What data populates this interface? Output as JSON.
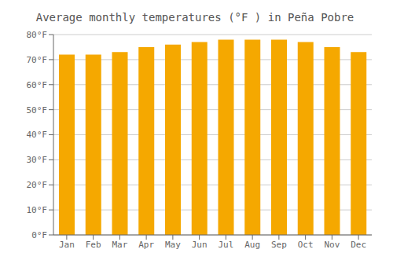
{
  "chart_data": {
    "type": "bar",
    "title": "Average monthly temperatures (°F ) in Peña Pobre",
    "categories": [
      "Jan",
      "Feb",
      "Mar",
      "Apr",
      "May",
      "Jun",
      "Jul",
      "Aug",
      "Sep",
      "Oct",
      "Nov",
      "Dec"
    ],
    "values": [
      72,
      72,
      73,
      75,
      76,
      77,
      78,
      78,
      78,
      77,
      75,
      73
    ],
    "color": "#F5A800",
    "ylim": [
      0,
      80
    ],
    "yticks": [
      {
        "value": 0,
        "label": "0°F"
      },
      {
        "value": 10,
        "label": "10°F"
      },
      {
        "value": 20,
        "label": "20°F"
      },
      {
        "value": 30,
        "label": "30°F"
      },
      {
        "value": 40,
        "label": "40°F"
      },
      {
        "value": 50,
        "label": "50°F"
      },
      {
        "value": 60,
        "label": "60°F"
      },
      {
        "value": 70,
        "label": "70°F"
      },
      {
        "value": 80,
        "label": "80°F"
      }
    ],
    "grid": true
  }
}
